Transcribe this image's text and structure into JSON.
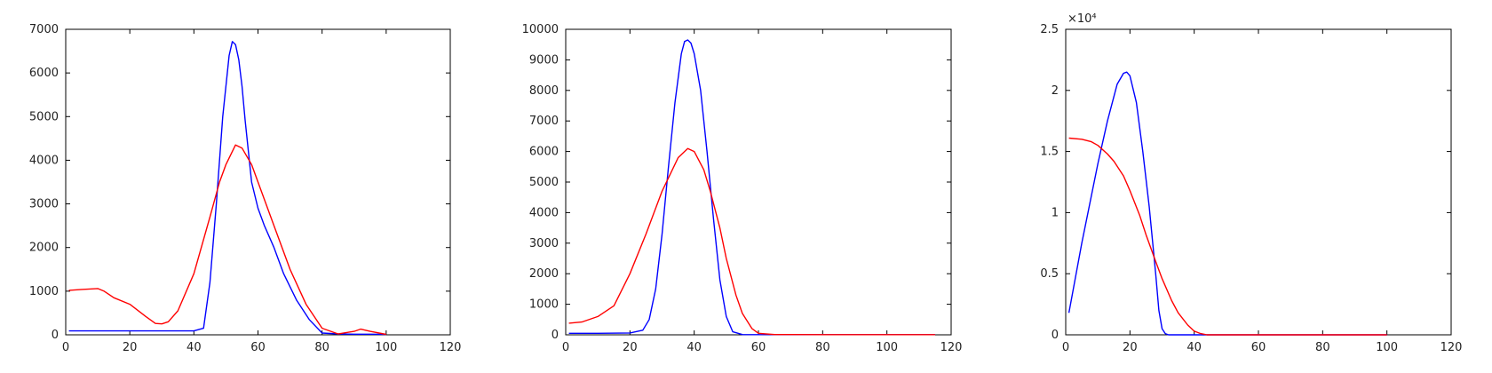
{
  "chart_data": [
    {
      "type": "line",
      "xlim": [
        0,
        120
      ],
      "ylim": [
        0,
        7000
      ],
      "xticks": [
        0,
        20,
        40,
        60,
        80,
        100,
        120
      ],
      "yticks": [
        0,
        1000,
        2000,
        3000,
        4000,
        5000,
        6000,
        7000
      ],
      "xtick_labels": [
        "0",
        "20",
        "40",
        "60",
        "80",
        "100",
        "120"
      ],
      "ytick_labels": [
        "0",
        "1000",
        "2000",
        "3000",
        "4000",
        "5000",
        "6000",
        "7000"
      ],
      "exponent": "",
      "series": [
        {
          "color": "#0000ff",
          "x": [
            1,
            10,
            20,
            30,
            40,
            43,
            45,
            47,
            49,
            51,
            52,
            53,
            54,
            55,
            56,
            57,
            58,
            60,
            62,
            65,
            68,
            72,
            76,
            80,
            85,
            90,
            95,
            100
          ],
          "y": [
            90,
            90,
            90,
            90,
            90,
            150,
            1200,
            3000,
            5000,
            6400,
            6720,
            6650,
            6300,
            5700,
            4900,
            4200,
            3500,
            2900,
            2500,
            2000,
            1400,
            800,
            350,
            40,
            20,
            15,
            15,
            10
          ]
        },
        {
          "color": "#ff0000",
          "x": [
            1,
            5,
            10,
            12,
            15,
            20,
            25,
            28,
            30,
            32,
            35,
            40,
            45,
            48,
            50,
            53,
            55,
            58,
            60,
            65,
            70,
            75,
            80,
            85,
            90,
            92,
            95,
            100
          ],
          "y": [
            1020,
            1040,
            1060,
            1000,
            850,
            700,
            420,
            260,
            250,
            300,
            550,
            1400,
            2700,
            3500,
            3900,
            4350,
            4280,
            3900,
            3500,
            2500,
            1500,
            700,
            150,
            20,
            80,
            130,
            80,
            10
          ]
        }
      ]
    },
    {
      "type": "line",
      "xlim": [
        0,
        120
      ],
      "ylim": [
        0,
        10000
      ],
      "xticks": [
        0,
        20,
        40,
        60,
        80,
        100,
        120
      ],
      "yticks": [
        0,
        1000,
        2000,
        3000,
        4000,
        5000,
        6000,
        7000,
        8000,
        9000,
        10000
      ],
      "xtick_labels": [
        "0",
        "20",
        "40",
        "60",
        "80",
        "100",
        "120"
      ],
      "ytick_labels": [
        "0",
        "1000",
        "2000",
        "3000",
        "4000",
        "5000",
        "6000",
        "7000",
        "8000",
        "9000",
        "10000"
      ],
      "exponent": "",
      "series": [
        {
          "color": "#0000ff",
          "x": [
            1,
            10,
            20,
            24,
            26,
            28,
            30,
            32,
            34,
            36,
            37,
            38,
            39,
            40,
            42,
            44,
            46,
            48,
            50,
            52,
            55,
            60,
            80,
            100,
            115
          ],
          "y": [
            50,
            50,
            60,
            150,
            500,
            1500,
            3300,
            5500,
            7600,
            9200,
            9600,
            9650,
            9550,
            9200,
            8000,
            6000,
            3800,
            1800,
            600,
            100,
            10,
            5,
            5,
            5,
            5
          ]
        },
        {
          "color": "#ff0000",
          "x": [
            1,
            5,
            10,
            15,
            20,
            25,
            30,
            35,
            38,
            40,
            43,
            45,
            48,
            50,
            53,
            55,
            58,
            60,
            65,
            80,
            100,
            115
          ],
          "y": [
            380,
            420,
            600,
            950,
            2000,
            3300,
            4700,
            5800,
            6100,
            6000,
            5400,
            4700,
            3500,
            2500,
            1300,
            700,
            200,
            50,
            10,
            5,
            5,
            5
          ]
        }
      ]
    },
    {
      "type": "line",
      "xlim": [
        0,
        120
      ],
      "ylim": [
        0,
        2.5
      ],
      "xticks": [
        0,
        20,
        40,
        60,
        80,
        100,
        120
      ],
      "yticks": [
        0,
        0.5,
        1,
        1.5,
        2,
        2.5
      ],
      "xtick_labels": [
        "0",
        "20",
        "40",
        "60",
        "80",
        "100",
        "120"
      ],
      "ytick_labels": [
        "0",
        "0.5",
        "1",
        "1.5",
        "2",
        "2.5"
      ],
      "exponent": "×10⁴",
      "series": [
        {
          "color": "#0000ff",
          "x": [
            1,
            5,
            10,
            13,
            16,
            18,
            19,
            20,
            22,
            24,
            26,
            28,
            29,
            30,
            31,
            32,
            35,
            40,
            60,
            80,
            100
          ],
          "y": [
            0.18,
            0.75,
            1.4,
            1.75,
            2.05,
            2.14,
            2.15,
            2.12,
            1.9,
            1.5,
            1.05,
            0.5,
            0.2,
            0.05,
            0.01,
            0,
            0,
            0,
            0,
            0,
            0
          ]
        },
        {
          "color": "#ff0000",
          "x": [
            1,
            5,
            8,
            10,
            13,
            15,
            18,
            20,
            23,
            25,
            28,
            30,
            33,
            35,
            38,
            40,
            42,
            44,
            50,
            60,
            80,
            100
          ],
          "y": [
            1.61,
            1.6,
            1.58,
            1.55,
            1.48,
            1.42,
            1.3,
            1.18,
            0.98,
            0.82,
            0.6,
            0.46,
            0.28,
            0.18,
            0.08,
            0.03,
            0.01,
            0,
            0,
            0,
            0,
            0
          ]
        }
      ]
    }
  ]
}
